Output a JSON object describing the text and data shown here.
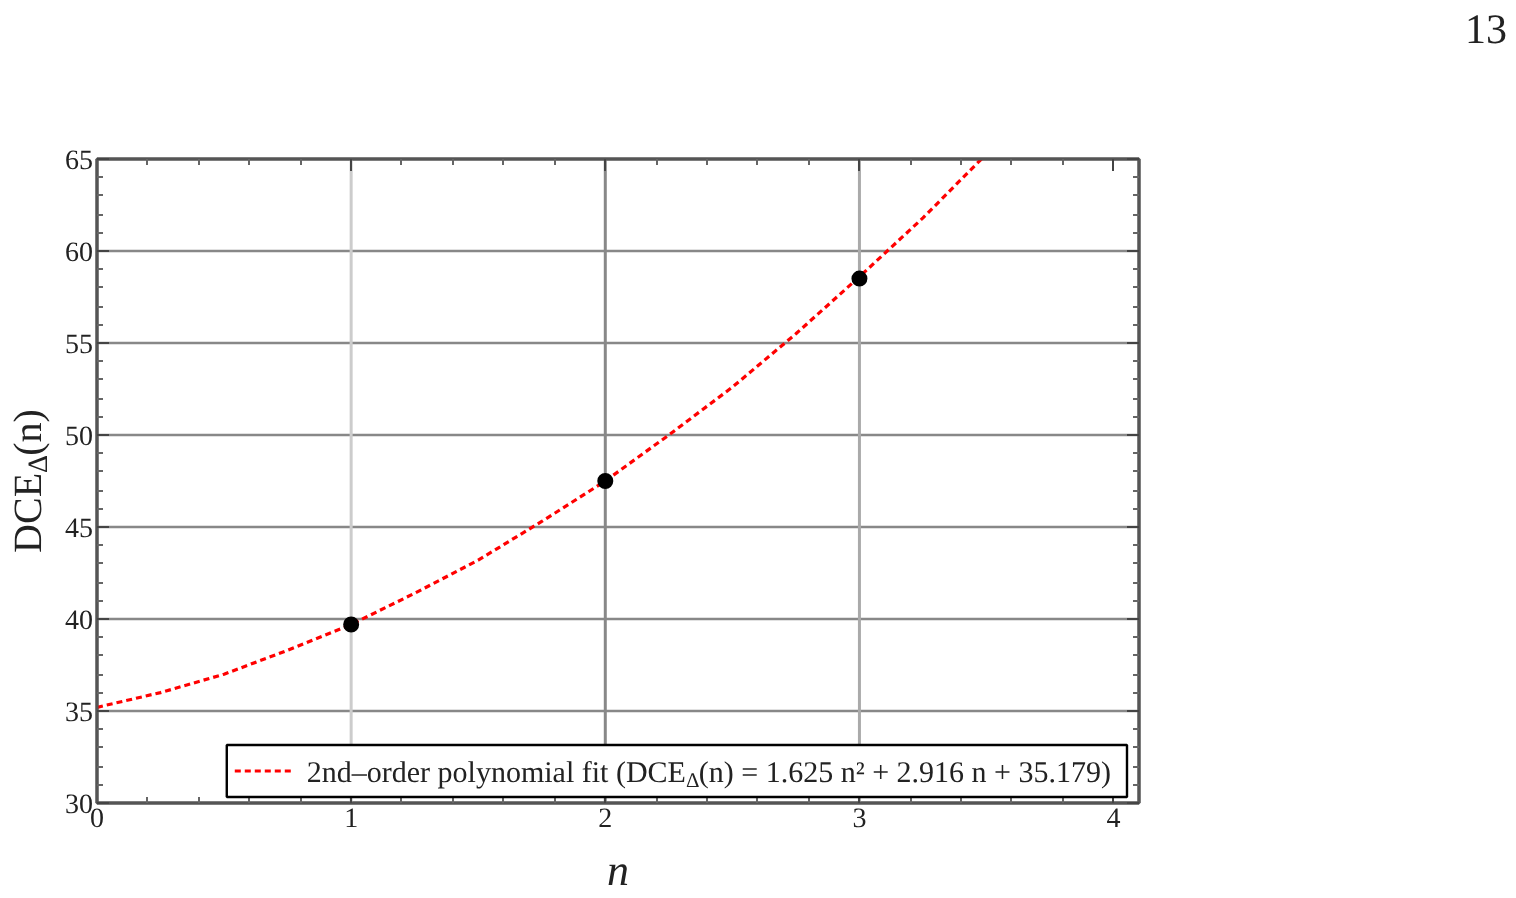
{
  "chart_data": {
    "type": "scatter",
    "xlabel": "n",
    "ylabel": "DCE$_{Δ}$(n)",
    "xlim": [
      0,
      4.1
    ],
    "ylim": [
      30,
      65
    ],
    "xticks": [
      0,
      1,
      2,
      3,
      4
    ],
    "yticks": [
      30,
      35,
      40,
      45,
      50,
      55,
      60,
      65
    ],
    "grid": "y",
    "legend": "bottom right",
    "ref_lines": [
      {
        "axis": "x",
        "value": 1,
        "color": "#cccccc"
      },
      {
        "axis": "x",
        "value": 2,
        "color": "#888888"
      },
      {
        "axis": "x",
        "value": 3,
        "color": "#aaaaaa"
      }
    ],
    "series": [
      {
        "type": "line",
        "name": "2nd–order polynomial fit (DCE$_{Δ}$(n) = 1.625 n² + 2.916 n + 35.179)",
        "color": "#ff0000",
        "line_style": "dashed",
        "marker": "none",
        "x": [
          0,
          0.25,
          0.5,
          0.75,
          1,
          1.25,
          1.5,
          1.75,
          2,
          2.25,
          2.5,
          2.75,
          3,
          3.25,
          3.48
        ],
        "values": [
          35.2,
          36.0,
          37.0,
          38.3,
          39.7,
          41.4,
          43.2,
          45.3,
          47.5,
          50.0,
          52.6,
          55.5,
          58.6,
          61.8,
          65.0
        ]
      },
      {
        "color": "#000000",
        "marker": "circle",
        "x": [
          1,
          2,
          3
        ],
        "values": [
          39.7,
          47.5,
          58.5
        ]
      }
    ],
    "annotations": [
      "13"
    ]
  }
}
